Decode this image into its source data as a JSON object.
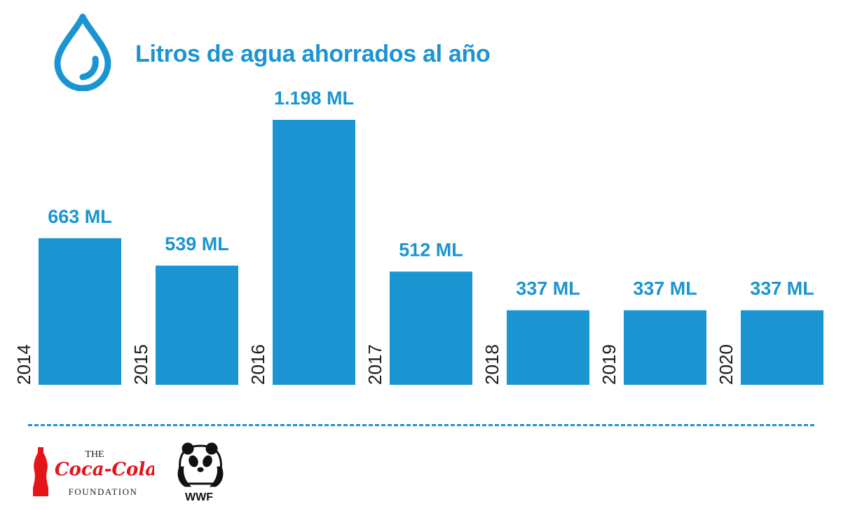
{
  "title": "Litros de agua ahorrados al año",
  "colors": {
    "accent": "#1b95d1",
    "axis_text": "#1a1a1a",
    "coca_cola_red": "#e4141b",
    "wwf_black": "#111111",
    "logo_text": "#222222"
  },
  "icons": {
    "drop": "water-drop-icon"
  },
  "chart_data": {
    "type": "bar",
    "title": "Litros de agua ahorrados al año",
    "categories": [
      "2014",
      "2015",
      "2016",
      "2017",
      "2018",
      "2019",
      "2020"
    ],
    "values": [
      663,
      539,
      1198,
      512,
      337,
      337,
      337
    ],
    "value_labels": [
      "663 ML",
      "539 ML",
      "1.198 ML",
      "512 ML",
      "337 ML",
      "337 ML",
      "337 ML"
    ],
    "unit": "ML",
    "ylim": [
      0,
      1198
    ],
    "grid": false,
    "legend": "none",
    "category_label_orientation": "vertical"
  },
  "logos": {
    "coca_cola": {
      "the": "THE",
      "name": "Coca-Cola",
      "foundation": "FOUNDATION"
    },
    "wwf": {
      "name": "WWF"
    }
  }
}
